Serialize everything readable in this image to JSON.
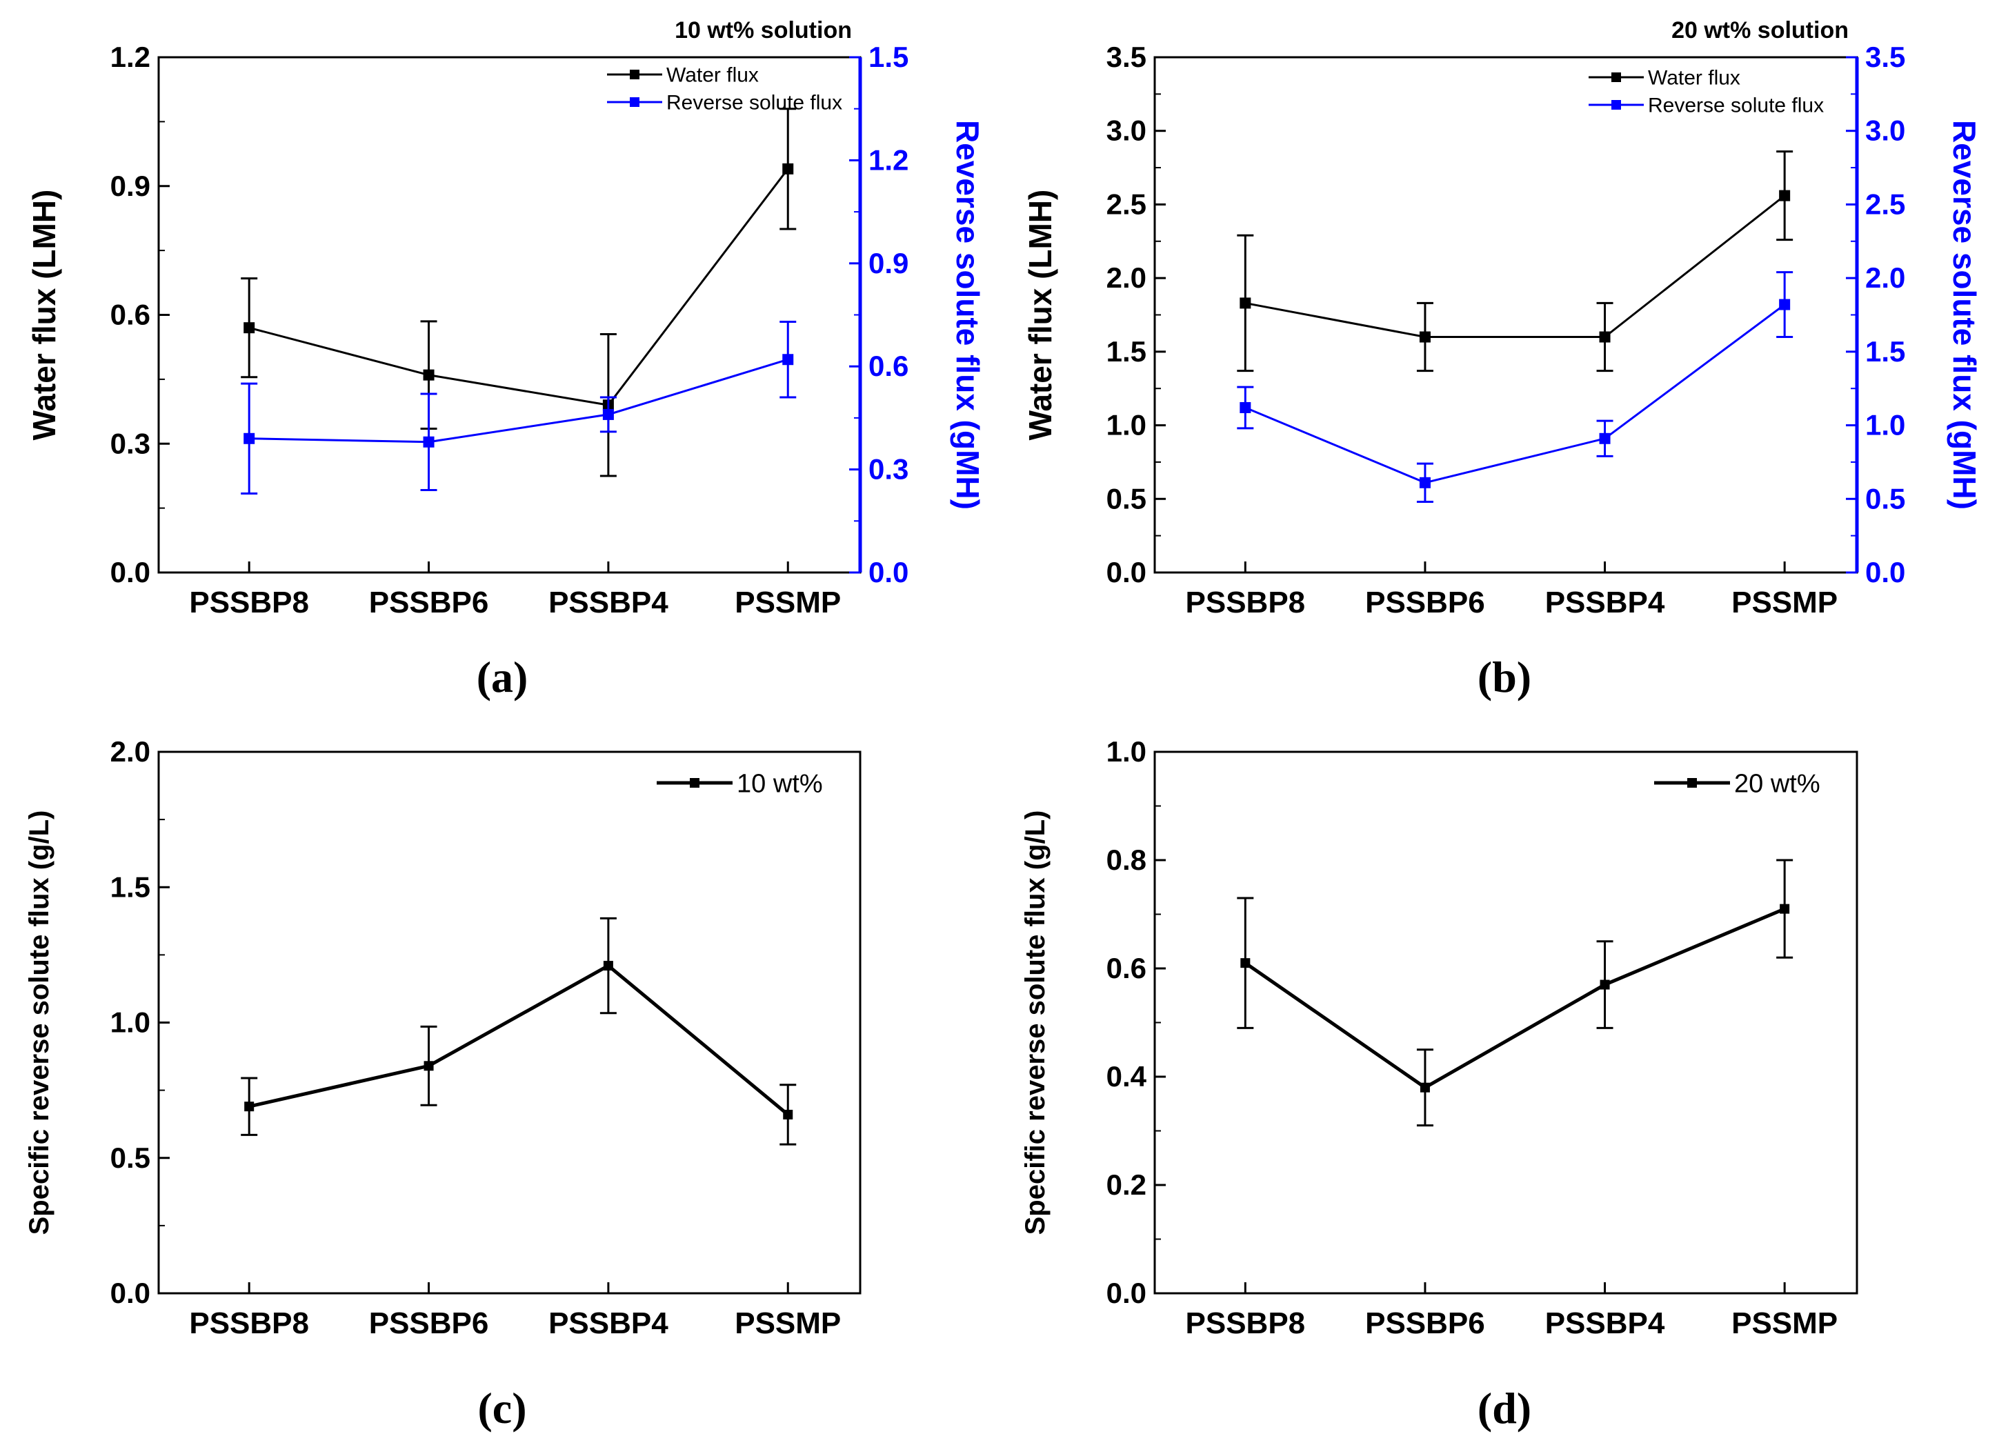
{
  "chart_data": [
    {
      "type": "line",
      "panel_label": "(a)",
      "title": "10 wt% solution",
      "categories": [
        "PSSBP8",
        "PSSBP6",
        "PSSBP4",
        "PSSMP"
      ],
      "ylabel": "Water flux (LMH)",
      "ylabel_right": "Reverse solute flux (gMH)",
      "ylim": [
        0,
        1.2
      ],
      "yticks": [
        "0.0",
        "0.3",
        "0.6",
        "0.9",
        "1.2"
      ],
      "ylim_right": [
        0,
        1.5
      ],
      "yticks_right": [
        "0.0",
        "0.3",
        "0.6",
        "0.9",
        "1.2",
        "1.5"
      ],
      "legend_position": "top-right",
      "series": [
        {
          "name": "Water flux",
          "axis": "left",
          "color": "#000000",
          "values": [
            0.57,
            0.46,
            0.39,
            0.94
          ],
          "errors": [
            0.115,
            0.125,
            0.165,
            0.14
          ]
        },
        {
          "name": "Reverse solute flux",
          "axis": "right",
          "color": "#0000ff",
          "values": [
            0.39,
            0.38,
            0.46,
            0.62
          ],
          "errors": [
            0.16,
            0.14,
            0.05,
            0.11
          ]
        }
      ]
    },
    {
      "type": "line",
      "panel_label": "(b)",
      "title": "20 wt% solution",
      "categories": [
        "PSSBP8",
        "PSSBP6",
        "PSSBP4",
        "PSSMP"
      ],
      "ylabel": "Water flux (LMH)",
      "ylabel_right": "Reverse solute flux (gMH)",
      "ylim": [
        0,
        3.5
      ],
      "yticks": [
        "0.0",
        "0.5",
        "1.0",
        "1.5",
        "2.0",
        "2.5",
        "3.0",
        "3.5"
      ],
      "ylim_right": [
        0,
        3.5
      ],
      "yticks_right": [
        "0.0",
        "0.5",
        "1.0",
        "1.5",
        "2.0",
        "2.5",
        "3.0",
        "3.5"
      ],
      "legend_position": "top-right",
      "series": [
        {
          "name": "Water flux",
          "axis": "left",
          "color": "#000000",
          "values": [
            1.83,
            1.6,
            1.6,
            2.56
          ],
          "errors": [
            0.46,
            0.23,
            0.23,
            0.3
          ]
        },
        {
          "name": "Reverse solute flux",
          "axis": "right",
          "color": "#0000ff",
          "values": [
            1.12,
            0.61,
            0.91,
            1.82
          ],
          "errors": [
            0.14,
            0.13,
            0.12,
            0.22
          ]
        }
      ]
    },
    {
      "type": "line",
      "panel_label": "(c)",
      "categories": [
        "PSSBP8",
        "PSSBP6",
        "PSSBP4",
        "PSSMP"
      ],
      "ylabel": "Specific reverse solute flux (g/L)",
      "ylim": [
        0,
        2.0
      ],
      "yticks": [
        "0.0",
        "0.5",
        "1.0",
        "1.5",
        "2.0"
      ],
      "legend_position": "top-right",
      "series": [
        {
          "name": "10 wt%",
          "axis": "left",
          "color": "#000000",
          "values": [
            0.69,
            0.84,
            1.21,
            0.66
          ],
          "errors": [
            0.105,
            0.145,
            0.175,
            0.11
          ]
        }
      ]
    },
    {
      "type": "line",
      "panel_label": "(d)",
      "categories": [
        "PSSBP8",
        "PSSBP6",
        "PSSBP4",
        "PSSMP"
      ],
      "ylabel": "Specific reverse solute flux (g/L)",
      "ylim": [
        0,
        1.0
      ],
      "yticks": [
        "0.0",
        "0.2",
        "0.4",
        "0.6",
        "0.8",
        "1.0"
      ],
      "legend_position": "top-right",
      "series": [
        {
          "name": "20 wt%",
          "axis": "left",
          "color": "#000000",
          "values": [
            0.61,
            0.38,
            0.57,
            0.71
          ],
          "errors": [
            0.12,
            0.07,
            0.08,
            0.09
          ]
        }
      ]
    }
  ]
}
